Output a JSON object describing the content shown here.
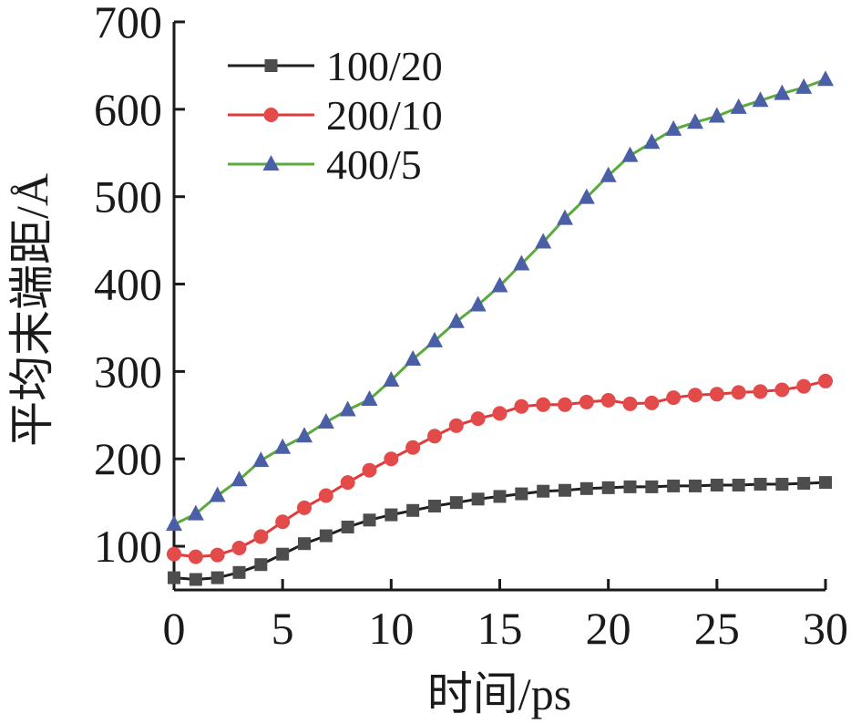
{
  "chart_data": {
    "type": "line",
    "xlabel": "时间/ps",
    "ylabel": "平均末端距/Å",
    "xlim": [
      0,
      30
    ],
    "ylim": [
      50,
      700
    ],
    "xticks": [
      0,
      5,
      10,
      15,
      20,
      25,
      30
    ],
    "yticks": [
      100,
      200,
      300,
      400,
      500,
      600,
      700
    ],
    "grid": false,
    "legend_position": "top-left",
    "x": [
      0,
      1,
      2,
      3,
      4,
      5,
      6,
      7,
      8,
      9,
      10,
      11,
      12,
      13,
      14,
      15,
      16,
      17,
      18,
      19,
      20,
      21,
      22,
      23,
      24,
      25,
      26,
      27,
      28,
      29,
      30
    ],
    "series": [
      {
        "name": "100/20",
        "line_color": "#1f1f1f",
        "marker_color": "#4d4d4d",
        "marker": "square",
        "values": [
          64,
          62,
          64,
          70,
          79,
          91,
          103,
          112,
          122,
          130,
          136,
          141,
          146,
          150,
          154,
          157,
          160,
          163,
          164,
          166,
          167,
          168,
          168,
          169,
          169,
          170,
          170,
          171,
          171,
          172,
          173
        ]
      },
      {
        "name": "200/10",
        "line_color": "#e03b3b",
        "marker_color": "#e34a4a",
        "marker": "circle",
        "values": [
          91,
          88,
          90,
          98,
          111,
          128,
          144,
          158,
          173,
          187,
          200,
          213,
          226,
          238,
          246,
          252,
          260,
          262,
          262,
          265,
          267,
          263,
          264,
          270,
          273,
          274,
          276,
          277,
          279,
          283,
          289
        ]
      },
      {
        "name": "400/5",
        "line_color": "#5aaa3c",
        "marker_color": "#4a5fa6",
        "marker": "triangle",
        "values": [
          125,
          137,
          158,
          176,
          198,
          213,
          226,
          242,
          256,
          268,
          290,
          314,
          335,
          357,
          376,
          398,
          423,
          448,
          475,
          499,
          524,
          547,
          562,
          577,
          585,
          592,
          602,
          610,
          618,
          625,
          634
        ]
      }
    ]
  }
}
